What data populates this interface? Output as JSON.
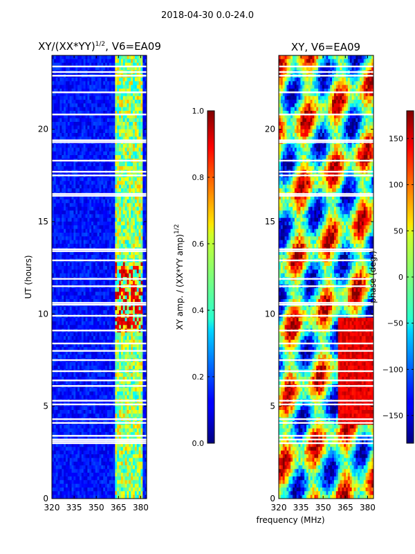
{
  "figure_title": "2018-04-30 0.0-24.0",
  "chart_data": [
    {
      "type": "heatmap",
      "title": "XY/(XX*YY)^1/2, V6=EA09",
      "title_main": "XY/(XX*YY)",
      "title_exp": "1/2",
      "title_tail": ", V6=EA09",
      "ylabel": "UT (hours)",
      "xlabel": "",
      "xlim": [
        320,
        384
      ],
      "ylim": [
        0,
        24
      ],
      "xticks": [
        320,
        335,
        350,
        365,
        380
      ],
      "yticks": [
        0,
        5,
        10,
        15,
        20
      ],
      "colorbar": {
        "label": "XY amp. / (XX*YY amp)^1/2",
        "label_main": "XY amp. / (XX*YY amp)",
        "label_exp": "1/2",
        "range": [
          0.0,
          1.0
        ],
        "ticks": [
          "0.0",
          "0.2",
          "0.4",
          "0.6",
          "0.8",
          "1.0"
        ]
      },
      "gaps_hours": [
        3.0,
        3.1,
        3.2,
        3.4,
        4.1,
        4.3,
        5.1,
        5.3,
        6.1,
        6.4,
        6.9,
        7.5,
        8.0,
        8.4,
        9.1,
        9.9,
        10.5,
        10.6,
        11.5,
        11.9,
        12.9,
        13.4,
        13.5,
        16.4,
        16.5,
        17.5,
        17.7,
        18.3,
        19.3,
        19.4,
        20.8,
        22.0,
        22.9,
        23.1,
        23.4
      ]
    },
    {
      "type": "heatmap",
      "title": "XY, V6=EA09",
      "ylabel": "",
      "xlabel": "frequency (MHz)",
      "xlim": [
        320,
        384
      ],
      "ylim": [
        0,
        24
      ],
      "xticks": [
        320,
        335,
        350,
        365,
        380
      ],
      "yticks": [
        0,
        5,
        10,
        15,
        20
      ],
      "colorbar": {
        "label": "phase (deg.)",
        "range": [
          -180,
          180
        ],
        "ticks": [
          "-150",
          "-100",
          "-50",
          "0",
          "50",
          "100",
          "150"
        ]
      },
      "gaps_hours": [
        3.0,
        3.2,
        3.4,
        4.1,
        4.3,
        5.1,
        5.3,
        6.1,
        6.4,
        6.9,
        7.5,
        8.0,
        8.4,
        9.1,
        9.9,
        10.5,
        10.6,
        11.5,
        11.9,
        12.9,
        13.4,
        13.5,
        16.4,
        16.5,
        17.5,
        17.7,
        18.3,
        19.3,
        19.4,
        20.8,
        22.0,
        22.9,
        23.1,
        23.4
      ]
    }
  ]
}
